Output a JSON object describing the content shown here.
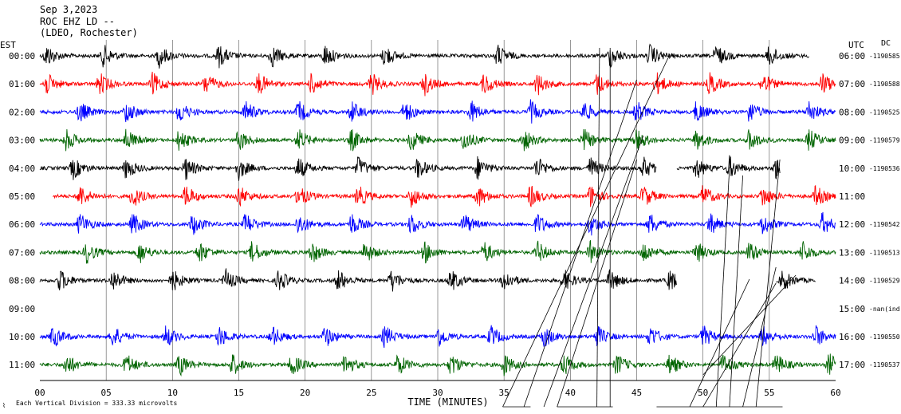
{
  "chart_data": {
    "type": "helicorder",
    "header": {
      "date": "Sep 3,2023",
      "station": "ROC EHZ LD --",
      "network": "(LDEO, Rochester)"
    },
    "left_axis_title": "EST",
    "right_axis_title": "UTC",
    "dc_label": "DC",
    "xlabel": "TIME (MINUTES)",
    "xlim": [
      0,
      60
    ],
    "xticks": [
      "00",
      "05",
      "10",
      "15",
      "20",
      "25",
      "30",
      "35",
      "40",
      "45",
      "50",
      "55",
      "60"
    ],
    "footer_note": "Each Vertical Division =  333.33 microvolts",
    "footer_mark": "⌇",
    "trace_colors": [
      "#000000",
      "#ff0000",
      "#0000ff",
      "#006400"
    ],
    "rows": [
      {
        "est": "00:00",
        "utc": "06:00",
        "dc": "-1190585",
        "color": "#000000",
        "start": 0.0,
        "end": 58.0,
        "events": [
          0.5,
          4.8,
          9.0,
          13.5,
          17.5,
          21.5,
          26.0,
          34.5,
          43.0,
          46.0,
          51.0,
          55.0
        ]
      },
      {
        "est": "01:00",
        "utc": "07:00",
        "dc": "-1190588",
        "color": "#ff0000",
        "start": 0.0,
        "end": 60.0,
        "events": [
          0.5,
          4.5,
          8.5,
          12.5,
          16.5,
          20.5,
          25.0,
          29.0,
          33.5,
          37.5,
          42.0,
          46.5,
          50.5,
          54.5,
          59.0
        ]
      },
      {
        "est": "02:00",
        "utc": "08:00",
        "dc": "-1190525",
        "color": "#0000ff",
        "start": 0.0,
        "end": 60.0,
        "events": [
          3.0,
          6.5,
          10.5,
          15.5,
          19.5,
          23.5,
          27.5,
          32.5,
          37.0,
          41.0,
          45.0,
          49.5,
          53.5,
          58.0
        ]
      },
      {
        "est": "03:00",
        "utc": "09:00",
        "dc": "-1190579",
        "color": "#006400",
        "start": 0.0,
        "end": 60.0,
        "events": [
          2.0,
          6.5,
          10.5,
          15.0,
          19.5,
          23.5,
          28.0,
          32.0,
          36.5,
          41.0,
          45.0,
          49.5,
          53.5,
          58.0
        ]
      },
      {
        "est": "04:00",
        "utc": "10:00",
        "dc": "-1190536",
        "color": "#000000",
        "start": 0.0,
        "end": 60.0,
        "events": [
          2.5,
          6.5,
          11.0,
          15.0,
          19.5,
          24.0,
          28.5,
          33.0,
          37.5,
          41.5,
          45.5,
          49.5,
          52.0,
          55.5
        ],
        "gaps": [
          [
            46.5,
            48.0
          ],
          [
            55.8,
            60.0
          ]
        ]
      },
      {
        "est": "05:00",
        "utc": "11:00",
        "dc": "",
        "color": "#ff0000",
        "start": 1.0,
        "end": 60.0,
        "events": [
          3.0,
          7.0,
          11.0,
          15.0,
          19.5,
          24.0,
          28.0,
          33.0,
          37.0,
          41.5,
          45.5,
          50.0,
          54.5,
          58.5
        ]
      },
      {
        "est": "06:00",
        "utc": "12:00",
        "dc": "-1190542",
        "color": "#0000ff",
        "start": 0.0,
        "end": 60.0,
        "events": [
          3.0,
          7.0,
          11.5,
          15.5,
          19.5,
          23.5,
          28.0,
          32.0,
          37.5,
          41.5,
          46.0,
          50.5,
          54.5,
          59.0
        ]
      },
      {
        "est": "07:00",
        "utc": "13:00",
        "dc": "-1190513",
        "color": "#006400",
        "start": 0.0,
        "end": 60.0,
        "events": [
          3.5,
          7.5,
          12.0,
          16.0,
          20.5,
          24.5,
          29.0,
          33.5,
          37.5,
          41.5,
          45.5,
          49.5,
          53.5,
          57.5
        ]
      },
      {
        "est": "08:00",
        "utc": "14:00",
        "dc": "-1190529",
        "color": "#000000",
        "start": 0.0,
        "end": 58.5,
        "events": [
          1.5,
          5.5,
          10.0,
          14.0,
          18.0,
          22.5,
          26.5,
          31.0,
          35.0,
          39.5,
          43.0,
          47.5,
          56.0
        ],
        "gaps": [
          [
            48.0,
            55.5
          ]
        ]
      },
      {
        "est": "09:00",
        "utc": "15:00",
        "dc": "-nan(ind",
        "color": "#ff0000",
        "start": 0.0,
        "end": 0.0,
        "events": []
      },
      {
        "est": "10:00",
        "utc": "16:00",
        "dc": "-1190550",
        "color": "#0000ff",
        "start": 0.0,
        "end": 60.0,
        "events": [
          1.0,
          5.5,
          9.5,
          13.5,
          17.5,
          21.5,
          26.0,
          30.0,
          34.0,
          38.0,
          42.0,
          46.0,
          50.0,
          54.5,
          58.5
        ]
      },
      {
        "est": "11:00",
        "utc": "17:00",
        "dc": "-1190537",
        "color": "#006400",
        "start": 0.0,
        "end": 60.0,
        "events": [
          2.0,
          6.5,
          10.5,
          14.5,
          19.0,
          23.0,
          27.0,
          31.0,
          35.0,
          39.5,
          43.5,
          47.5,
          51.5,
          55.5,
          59.5
        ]
      }
    ]
  }
}
